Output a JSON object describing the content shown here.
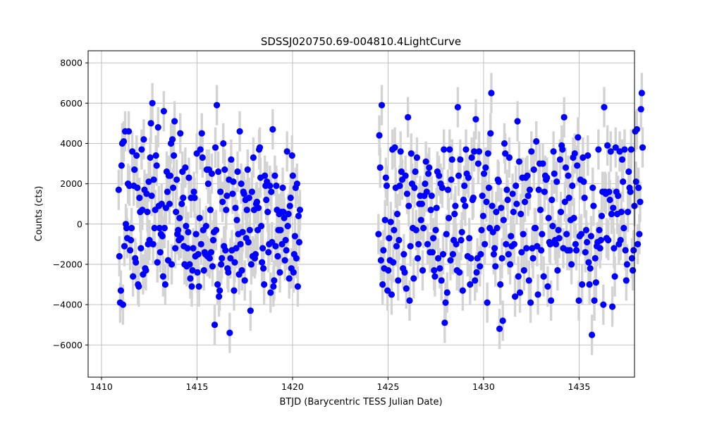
{
  "chart_data": {
    "type": "scatter",
    "title": "SDSSJ020750.69-004810.4LightCurve",
    "xlabel": "BTJD (Barycentric TESS Julian Date)",
    "ylabel": "Counts (cts)",
    "xlim": [
      1409.3,
      1437.9
    ],
    "ylim": [
      -7600,
      8600
    ],
    "xticks": [
      1410,
      1415,
      1420,
      1425,
      1430,
      1435
    ],
    "xtick_labels": [
      "1410",
      "1415",
      "1420",
      "1425",
      "1430",
      "1435"
    ],
    "yticks": [
      -6000,
      -4000,
      -2000,
      0,
      2000,
      4000,
      6000,
      8000
    ],
    "ytick_labels": [
      "−6000",
      "−4000",
      "−2000",
      "0",
      "2000",
      "4000",
      "6000",
      "8000"
    ],
    "grid": true,
    "colors": {
      "points": "#0000ff",
      "errorbars": "#d3d3d3",
      "grid": "#b0b0b0"
    },
    "series": [
      {
        "segments": [
          {
            "x_start": 1410.9,
            "x_step": 0.0375,
            "err": 1000,
            "y": [
              1700,
              -1600,
              -3900,
              -3300,
              2900,
              4000,
              -4000,
              4100,
              -1100,
              4600,
              0,
              -200,
              -700,
              2000,
              4600,
              1900,
              -1300,
              -800,
              -200,
              3600,
              -2600,
              1900,
              2700,
              -1700,
              -1900,
              3400,
              1800,
              -3000,
              -3100,
              1300,
              600,
              -1200,
              3700,
              700,
              -2500,
              4200,
              1700,
              -2200,
              -2300,
              1500,
              600,
              -1000,
              2100,
              -800,
              3300,
              5000,
              1400,
              6000,
              -1000,
              2200,
              -200,
              700,
              3400,
              2900,
              -1900,
              4800,
              900,
              -200,
              -1400,
              -500,
              1000,
              -600,
              -2600,
              5600,
              -200,
              -3000,
              800,
              2600,
              1600,
              -1800,
              2400,
              1000,
              2400,
              4000,
              -2000,
              4200,
              1800,
              3400,
              5100,
              -1200,
              600,
              2200,
              -500,
              -300,
              -800,
              300,
              4500,
              -700,
              1000,
              2600,
              1300,
              -1100,
              -2000,
              2800,
              -100,
              -2100,
              -1200,
              -400,
              2300,
              -2000,
              -2700,
              1300,
              -3100,
              -2300,
              -1200,
              1600,
              1300,
              -1600,
              -500,
              3500,
              -2400,
              -1500,
              -3100,
              300,
              3700,
              -1000,
              4500,
              3300,
              -300,
              -2300,
              -1400,
              -1500,
              -100,
              2700,
              -1600,
              2000,
              2700,
              -1700,
              700,
              -1400,
              2500,
              -2100,
              -800,
              -400,
              -5000,
              3800,
              -300,
              5900,
              -3000,
              2600,
              -3600,
              -3300,
              1600,
              -2000,
              -1700,
              1100,
              4000,
              -1100,
              2700,
              -1300,
              700,
              1400,
              -2200,
              -2400,
              2200,
              -5400,
              -1700,
              3200,
              -1300,
              1500,
              2100,
              -3300,
              -1900,
              800,
              -1200,
              200,
              2600,
              -500,
              -2500,
              4600,
              -1000,
              2000,
              -2300,
              -400,
              1600,
              1500,
              -2800,
              1200,
              -700,
              700,
              2700,
              -900,
              1300,
              -300,
              -4300,
              -2000,
              1600,
              -1600,
              3300,
              700,
              -1700,
              -1500,
              1000,
              1100,
              -300,
              800,
              3700,
              3800,
              2300,
              -100,
              -1900,
              -1200,
              -2200,
              -3000,
              2400,
              1900,
              1200,
              2100,
              600,
              -1400,
              -1000,
              1900,
              -3400,
              1600,
              -900,
              4700,
              -3100,
              -2800,
              2400,
              -1100,
              1900,
              700,
              -1600,
              -300,
              500,
              -2400,
              -300,
              600,
              -1000,
              1800,
              600,
              300,
              -1800,
              -800,
              -1300,
              3600,
              -100,
              500,
              -2700,
              900,
              1300,
              -2200,
              3400,
              2400,
              -2400,
              -1500,
              -600,
              1800,
              -1700,
              2000,
              -3100,
              400,
              -900,
              700
            ]
          },
          {
            "x_start": 1424.5,
            "x_step": 0.0428,
            "err": 1000,
            "y": [
              -500,
              4400,
              2800,
              -1800,
              5900,
              -3000,
              -1300,
              -2200,
              200,
              2300,
              1900,
              -3300,
              -2300,
              -700,
              -1800,
              100,
              -3500,
              3700,
              -1900,
              -300,
              3800,
              1800,
              -1100,
              500,
              -2800,
              -800,
              1900,
              3600,
              2600,
              2200,
              -2200,
              -1500,
              -2400,
              2400,
              -3200,
              1500,
              5300,
              900,
              -3800,
              -1100,
              3500,
              2000,
              -200,
              -2700,
              1800,
              2600,
              -300,
              3300,
              -1700,
              -1000,
              1000,
              1400,
              200,
              1000,
              -2300,
              -200,
              1400,
              2000,
              3100,
              1600,
              -1000,
              2500,
              2800,
              -1400,
              700,
              1400,
              -1400,
              -700,
              -2300,
              -2600,
              -300,
              800,
              2600,
              -1700,
              2400,
              -2200,
              2000,
              -2800,
              1800,
              -1500,
              3700,
              -4900,
              -3900,
              -500,
              -3400,
              1700,
              300,
              3700,
              -1800,
              2200,
              3200,
              -1500,
              -800,
              500,
              900,
              -1000,
              -2300,
              5800,
              2400,
              -2400,
              3200,
              -800,
              -400,
              -3300,
              1200,
              1900,
              900,
              3700,
              2500,
              -1600,
              2300,
              -700,
              -3000,
              -1700,
              3300,
              1200,
              1300,
              3600,
              -2800,
              5200,
              -2400,
              -1700,
              3000,
              3600,
              -2100,
              -1500,
              -300,
              1400,
              400,
              2500,
              -1000,
              2800,
              1100,
              -3900,
              3500,
              1800,
              -200,
              4500,
              6500,
              900,
              -400,
              -1500,
              -1200,
              -2100,
              600,
              -200,
              2200,
              2100,
              -5200,
              -3000,
              800,
              -1700,
              -4800,
              200,
              4000,
              3500,
              -1000,
              1700,
              1200,
              -1500,
              3300,
              -2000,
              -600,
              -1100,
              1500,
              600,
              -1000,
              -3600,
              1900,
              1000,
              5100,
              -2600,
              3100,
              -3400,
              500,
              -1400,
              2300,
              -500,
              -2300,
              1100,
              2300,
              -1200,
              2400,
              1400,
              -2800,
              1700,
              -3900,
              3600,
              -1200,
              -1700,
              2700,
              -200,
              -200,
              4100,
              -1100,
              -3500,
              1700,
              3000,
              700,
              -1300,
              -500,
              3000,
              -2600,
              1600,
              2400,
              2200,
              2300,
              -3100,
              300,
              -900,
              -1000,
              -3800,
              1200,
              -100,
              3600,
              2500,
              -800,
              -1000,
              2100,
              -2300,
              -300,
              -700,
              3200,
              600,
              3900,
              3700,
              -1200,
              5300,
              1100,
              2800,
              -500,
              -1300,
              2400,
              1300,
              -1300,
              200,
              -2000,
              1900,
              3300,
              300,
              3500,
              -1000,
              -1300,
              2900,
              4300,
              -3800,
              -600,
              2200,
              -500,
              -3000,
              3300,
              2100,
              1300,
              -1400,
              -300,
              -900,
              3400,
              -1900,
              -3000,
              -2200,
              -600,
              -5500,
              1800,
              900,
              -3800,
              -1700,
              -2900,
              -1100,
              -900,
              3700,
              -300,
              -1200,
              -800,
              400,
              1600,
              -4000,
              5800,
              1600,
              1500,
              -700,
              3900,
              -800,
              1600,
              1200,
              3600,
              500,
              -4100,
              800,
              -1200,
              -2600,
              3800,
              1600,
              500,
              1400,
              -1000,
              3600,
              -800,
              600,
              3200,
              2100,
              -200,
              3700,
              -1300,
              -2800,
              -2000,
              600,
              2600,
              1800,
              1600,
              3700,
              -1700,
              -2300,
              -1300,
              900,
              4600,
              2100,
              4700,
              -1000,
              1800,
              -500,
              1100,
              5700,
              6500,
              3800
            ]
          }
        ]
      }
    ]
  }
}
